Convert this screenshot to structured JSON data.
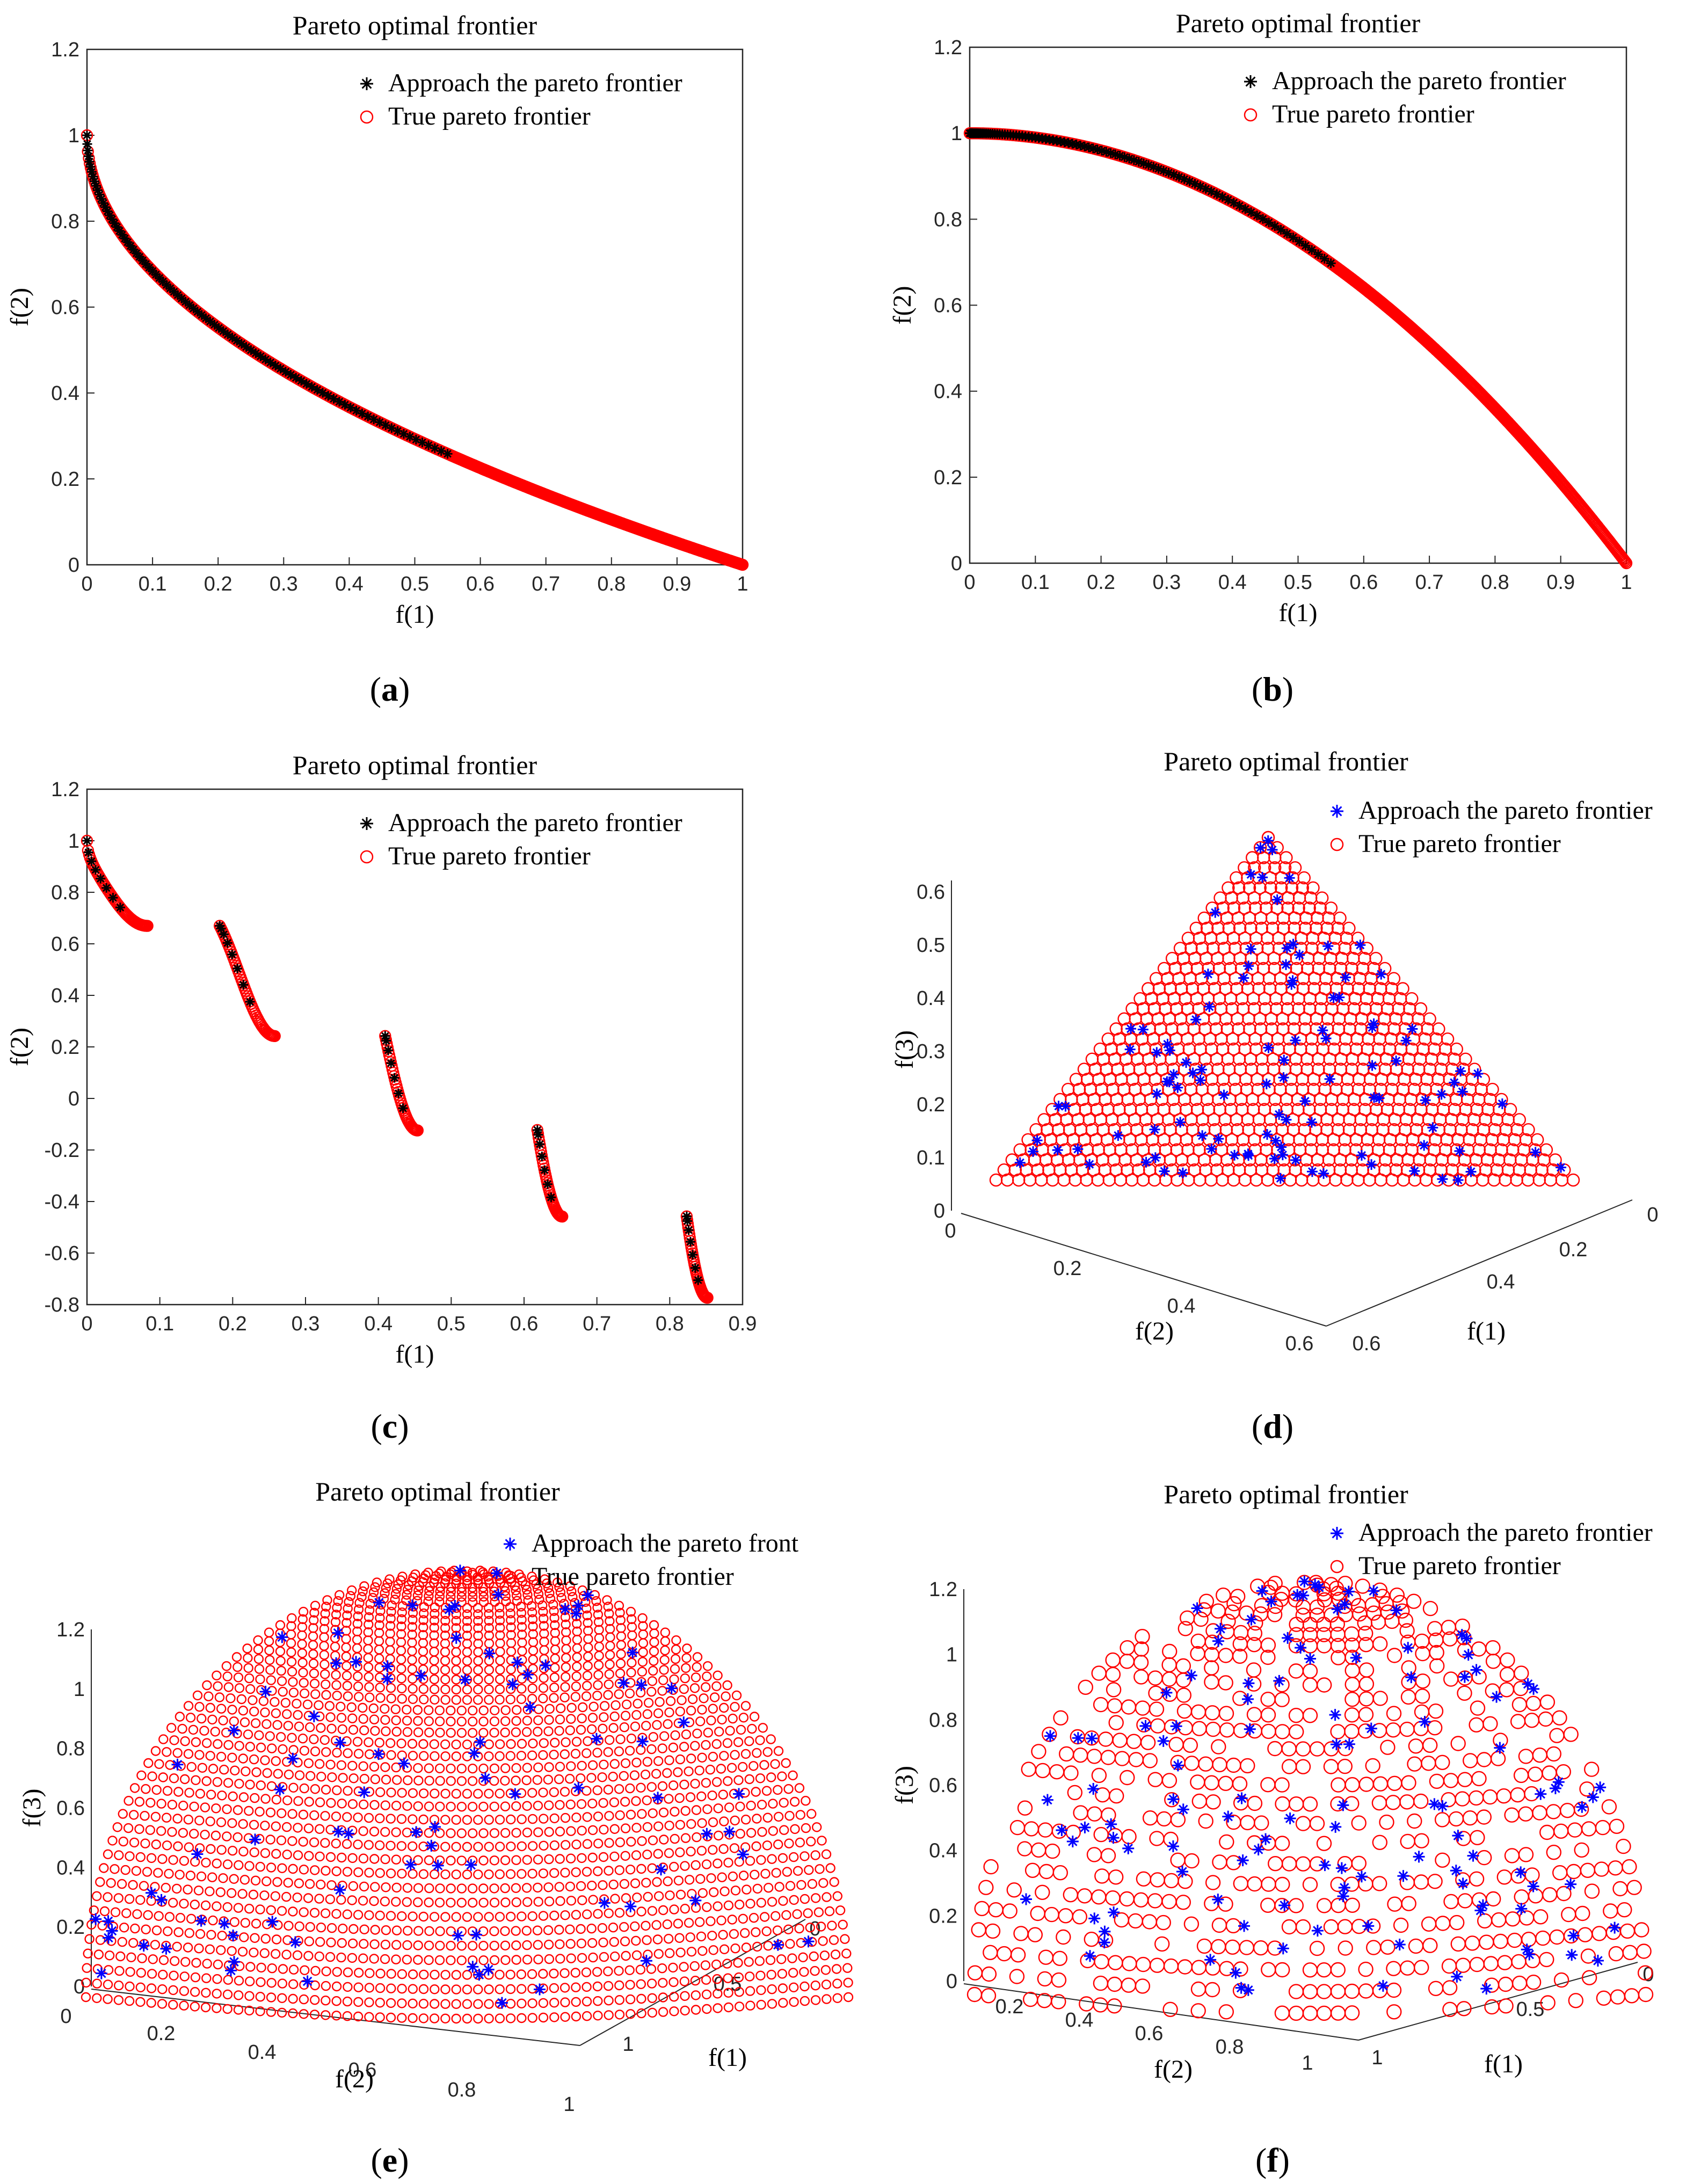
{
  "chart_data": [
    {
      "id": "a",
      "type": "scatter",
      "title": "Pareto optimal frontier",
      "xlabel": "f(1)",
      "ylabel": "f(2)",
      "xlim": [
        0,
        1
      ],
      "ylim": [
        0,
        1.2
      ],
      "xticks": [
        "0",
        "0.1",
        "0.2",
        "0.3",
        "0.4",
        "0.5",
        "0.6",
        "0.7",
        "0.8",
        "0.9",
        "1"
      ],
      "yticks": [
        "0",
        "0.2",
        "0.4",
        "0.6",
        "0.8",
        "1",
        "1.2"
      ],
      "legend": [
        "Approach the pareto frontier",
        "True pareto frontier"
      ],
      "legend_position": "top-right",
      "approx_marker": "*",
      "approx_color": "#000000",
      "true_marker": "o",
      "true_color": "#ff0000",
      "front": "f2 = 1 - sqrt(f1)",
      "caption": "a"
    },
    {
      "id": "b",
      "type": "scatter",
      "title": "Pareto optimal frontier",
      "xlabel": "f(1)",
      "ylabel": "f(2)",
      "xlim": [
        0,
        1
      ],
      "ylim": [
        0,
        1.2
      ],
      "xticks": [
        "0",
        "0.1",
        "0.2",
        "0.3",
        "0.4",
        "0.5",
        "0.6",
        "0.7",
        "0.8",
        "0.9",
        "1"
      ],
      "yticks": [
        "0",
        "0.2",
        "0.4",
        "0.6",
        "0.8",
        "1",
        "1.2"
      ],
      "legend": [
        "Approach the pareto frontier",
        "True pareto frontier"
      ],
      "legend_position": "top-right",
      "approx_marker": "*",
      "approx_color": "#000000",
      "true_marker": "o",
      "true_color": "#ff0000",
      "front": "f2 = 1 - f1^2",
      "caption": "b"
    },
    {
      "id": "c",
      "type": "scatter",
      "title": "Pareto optimal frontier",
      "xlabel": "f(1)",
      "ylabel": "f(2)",
      "xlim": [
        0,
        0.9
      ],
      "ylim": [
        -0.8,
        1.2
      ],
      "xticks": [
        "0",
        "0.1",
        "0.2",
        "0.3",
        "0.4",
        "0.5",
        "0.6",
        "0.7",
        "0.8",
        "0.9"
      ],
      "yticks": [
        "-0.8",
        "-0.6",
        "-0.4",
        "-0.2",
        "0",
        "0.2",
        "0.4",
        "0.6",
        "0.8",
        "1",
        "1.2"
      ],
      "legend": [
        "Approach the pareto frontier",
        "True pareto frontier"
      ],
      "legend_position": "top-right",
      "approx_marker": "*",
      "approx_color": "#000000",
      "true_marker": "o",
      "true_color": "#ff0000",
      "front": "f2 = 1 - sqrt(f1) - f1*sin(10*pi*f1)",
      "segments": [
        [
          0,
          0.083
        ],
        [
          0.1822,
          0.2578
        ],
        [
          0.4093,
          0.4539
        ],
        [
          0.6183,
          0.6525
        ],
        [
          0.8233,
          0.8518
        ]
      ],
      "caption": "c"
    },
    {
      "id": "d",
      "type": "scatter3d",
      "title": "Pareto optimal frontier",
      "xlabel": "f(1)",
      "ylabel": "f(2)",
      "zlabel": "f(3)",
      "xticks": [
        "0",
        "0.2",
        "0.4",
        "0.6"
      ],
      "yticks": [
        "0",
        "0.2",
        "0.4",
        "0.6"
      ],
      "zticks": [
        "0",
        "0.1",
        "0.2",
        "0.3",
        "0.4",
        "0.5",
        "0.6"
      ],
      "legend": [
        "Approach the pareto frontier",
        "True pareto frontier"
      ],
      "legend_position": "top-right",
      "approx_marker": "*",
      "approx_color": "#0000ff",
      "true_marker": "o",
      "true_color": "#ff0000",
      "front": "f1 + f2 + f3 = 0.5 (linear plane)",
      "caption": "d"
    },
    {
      "id": "e",
      "type": "scatter3d",
      "title": "Pareto optimal frontier",
      "xlabel": "f(1)",
      "ylabel": "f(2)",
      "zlabel": "f(3)",
      "xticks": [
        "0",
        "0.5",
        "1"
      ],
      "yticks": [
        "0",
        "0.2",
        "0.4",
        "0.6",
        "0.8",
        "1"
      ],
      "zticks": [
        "0",
        "0.2",
        "0.4",
        "0.6",
        "0.8",
        "1",
        "1.2"
      ],
      "legend": [
        "Approach the pareto front",
        "True pareto frontier"
      ],
      "legend_position": "top-right",
      "approx_marker": "*",
      "approx_color": "#0000ff",
      "true_marker": "o",
      "true_color": "#ff0000",
      "front": "f1^2 + f2^2 + f3^2 = 1 (spherical)",
      "caption": "e"
    },
    {
      "id": "f",
      "type": "scatter3d",
      "title": "Pareto optimal frontier",
      "xlabel": "f(1)",
      "ylabel": "f(2)",
      "zlabel": "f(3)",
      "xticks": [
        "0",
        "0.5",
        "1"
      ],
      "yticks": [
        "0.2",
        "0.4",
        "0.6",
        "0.8",
        "1"
      ],
      "zticks": [
        "0",
        "0.2",
        "0.4",
        "0.6",
        "0.8",
        "1",
        "1.2"
      ],
      "legend": [
        "Approach the pareto frontier",
        "True pareto frontier"
      ],
      "legend_position": "top-right",
      "approx_marker": "*",
      "approx_color": "#0000ff",
      "true_marker": "o",
      "true_color": "#ff0000",
      "front": "f1^2 + f2^2 + f3^2 = 1 (spherical, sparse)",
      "caption": "f"
    }
  ]
}
